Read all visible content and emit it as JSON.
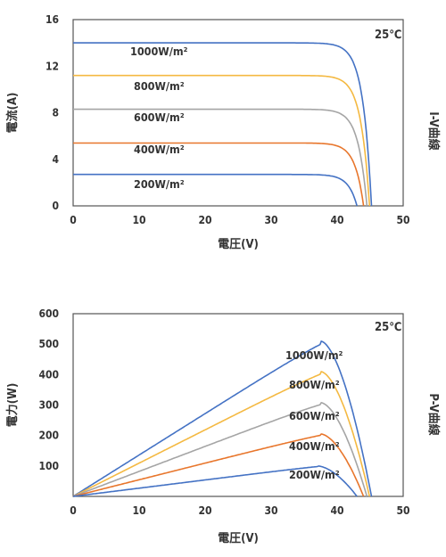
{
  "chart_data": [
    {
      "type": "line",
      "temperature": "25℃",
      "side_label": "I-V曲線",
      "xlabel": "電圧(V)",
      "ylabel": "電流(A)",
      "xlim": [
        0,
        50
      ],
      "ylim": [
        0,
        16
      ],
      "x_ticks": [
        "0",
        "10",
        "20",
        "30",
        "40",
        "50"
      ],
      "y_ticks": [
        "0",
        "4",
        "8",
        "12",
        "16"
      ],
      "series": [
        {
          "name": "1000W/m²",
          "color": "#4472C4",
          "isc": 14.0,
          "voc": 45.2
        },
        {
          "name": "800W/m²",
          "color": "#F4B942",
          "isc": 11.2,
          "voc": 44.9
        },
        {
          "name": "600W/m²",
          "color": "#A5A5A5",
          "isc": 8.3,
          "voc": 44.5
        },
        {
          "name": "400W/m²",
          "color": "#E8762C",
          "isc": 5.4,
          "voc": 44.0
        },
        {
          "name": "200W/m²",
          "color": "#4472C4",
          "isc": 2.7,
          "voc": 43.0
        }
      ]
    },
    {
      "type": "line",
      "temperature": "25℃",
      "side_label": "P-V曲線",
      "xlabel": "電圧(V)",
      "ylabel": "電力(W)",
      "xlim": [
        0,
        50
      ],
      "ylim": [
        0,
        600
      ],
      "x_ticks": [
        "0",
        "10",
        "20",
        "30",
        "40",
        "50"
      ],
      "y_ticks": [
        "100",
        "200",
        "300",
        "400",
        "500",
        "600"
      ],
      "series": [
        {
          "name": "1000W/m²",
          "color": "#4472C4",
          "peak_v": 37.5,
          "peak_p": 510,
          "voc": 45.2
        },
        {
          "name": "800W/m²",
          "color": "#F4B942",
          "peak_v": 37.5,
          "peak_p": 410,
          "voc": 44.9
        },
        {
          "name": "600W/m²",
          "color": "#A5A5A5",
          "peak_v": 37.5,
          "peak_p": 308,
          "voc": 44.5
        },
        {
          "name": "400W/m²",
          "color": "#E8762C",
          "peak_v": 37.5,
          "peak_p": 205,
          "voc": 44.0
        },
        {
          "name": "200W/m²",
          "color": "#4472C4",
          "peak_v": 37.0,
          "peak_p": 100,
          "voc": 43.0
        }
      ]
    }
  ]
}
